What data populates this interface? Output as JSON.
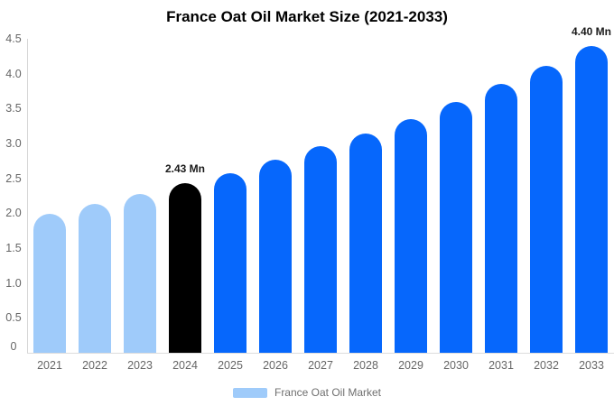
{
  "chart_data": {
    "type": "bar",
    "title": "France Oat Oil Market Size (2021-2033)",
    "categories": [
      "2021",
      "2022",
      "2023",
      "2024",
      "2025",
      "2026",
      "2027",
      "2028",
      "2029",
      "2030",
      "2031",
      "2032",
      "2033"
    ],
    "values": [
      1.99,
      2.13,
      2.28,
      2.43,
      2.57,
      2.77,
      2.96,
      3.14,
      3.35,
      3.6,
      3.85,
      4.11,
      4.4
    ],
    "unit": "Mn",
    "ylim": [
      0,
      4.5
    ],
    "ytick_step": 0.5,
    "ytick_values": [
      4.5,
      4.0,
      3.5,
      3.0,
      2.5,
      2.0,
      1.5,
      1.0,
      0.5,
      0
    ],
    "ytick_labels": [
      "4.5",
      "4.0",
      "3.5",
      "3.0",
      "2.5",
      "2.0",
      "1.5",
      "1.0",
      "0.5",
      "0"
    ],
    "grid": "off",
    "legend_position": "bottom",
    "bar_colors": [
      "#9FCBFA",
      "#9FCBFA",
      "#9FCBFA",
      "#000000",
      "#0667FC",
      "#0667FC",
      "#0667FC",
      "#0667FC",
      "#0667FC",
      "#0667FC",
      "#0667FC",
      "#0667FC",
      "#0667FC"
    ],
    "annotations": [
      {
        "category": "2024",
        "label": "2.43 Mn"
      },
      {
        "category": "2033",
        "label": "4.40 Mn"
      }
    ],
    "legend": [
      {
        "label": "France Oat Oil Market",
        "color": "#9FCBFA"
      }
    ],
    "colors": {
      "forecast_blue": "#0667FC",
      "historical_light_blue": "#9FCBFA",
      "base_year_black": "#000000",
      "axis_gray": "#d6d6d6",
      "text_gray": "#666666"
    }
  }
}
